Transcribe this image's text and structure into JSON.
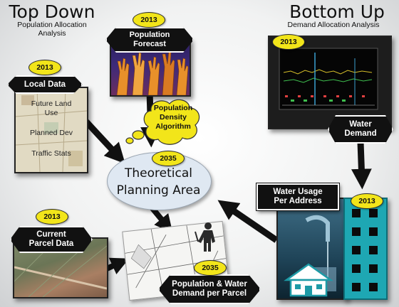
{
  "top_down": {
    "title": "Top Down",
    "subtitle_line1": "Population Allocation",
    "subtitle_line2": "Analysis"
  },
  "bottom_up": {
    "title": "Bottom Up",
    "subtitle": "Demand Allocation Analysis"
  },
  "population_forecast": {
    "year": "2013",
    "line1": "Population",
    "line2": "Forecast"
  },
  "local_data": {
    "year": "2013",
    "label": "Local Data",
    "items": [
      "Future Land",
      "Use",
      "Planned Dev",
      "Traffic Stats"
    ]
  },
  "algorithm": {
    "line1": "Population",
    "line2": "Density",
    "line3": "Algorithm"
  },
  "theoretical_area": {
    "year": "2035",
    "line1": "Theoretical",
    "line2": "Planning Area"
  },
  "water_demand": {
    "year": "2013",
    "line1": "Water",
    "line2": "Demand"
  },
  "water_usage": {
    "year": "2013",
    "line1": "Water Usage",
    "line2": "Per Address"
  },
  "parcel_data": {
    "year": "2013",
    "line1": "Current",
    "line2": "Parcel Data"
  },
  "pop_water": {
    "year": "2035",
    "line1": "Population & Water",
    "line2": "Demand per Parcel"
  },
  "colors": {
    "oval_yellow": "#f2e51a",
    "label_black": "#111111",
    "building_teal": "#1ea7b3",
    "cloud_yellow": "#f2e51a"
  }
}
